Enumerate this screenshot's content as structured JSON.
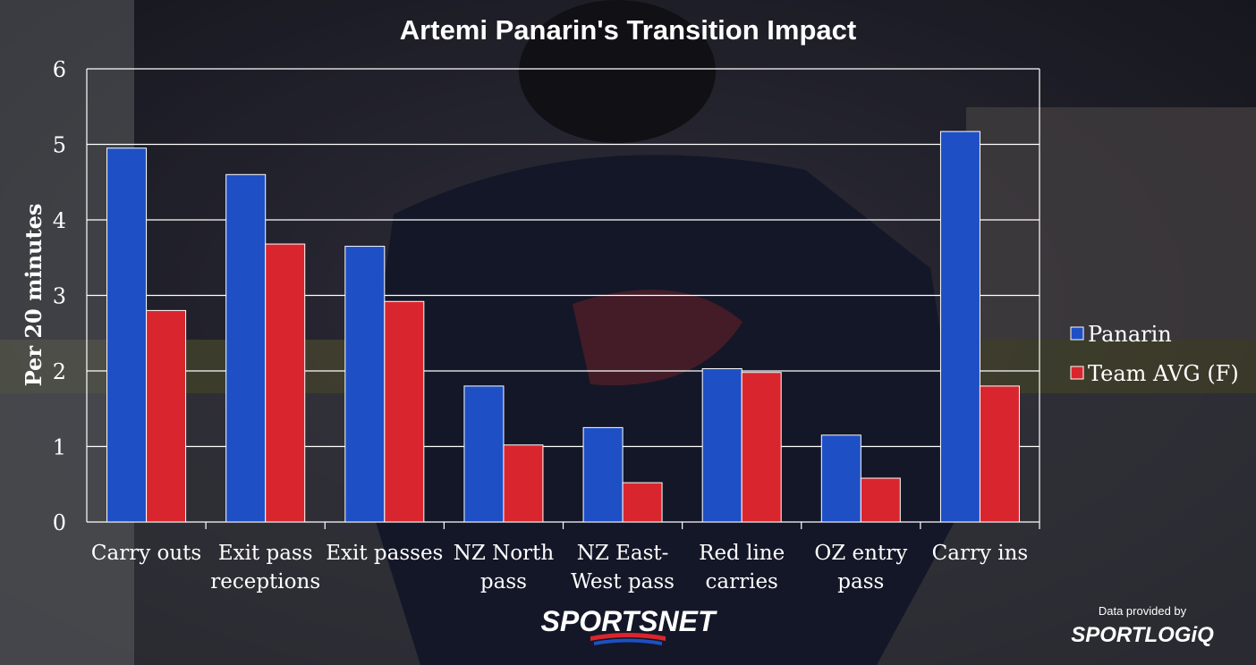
{
  "chart_data": {
    "type": "bar",
    "title": "Artemi Panarin's Transition Impact",
    "ylabel": "Per 20 minutes",
    "xlabel": "",
    "ylim": [
      0,
      6
    ],
    "yticks": [
      "0",
      "1",
      "2",
      "3",
      "4",
      "5",
      "6"
    ],
    "grid": true,
    "legend_position": "right",
    "categories": [
      [
        "Carry outs"
      ],
      [
        "Exit pass",
        "receptions"
      ],
      [
        "Exit passes"
      ],
      [
        "NZ North",
        "pass"
      ],
      [
        "NZ East-",
        "West pass"
      ],
      [
        "Red line",
        "carries"
      ],
      [
        "OZ entry",
        "pass"
      ],
      [
        "Carry ins"
      ]
    ],
    "series": [
      {
        "name": "Panarin",
        "color": "#1E4FC4",
        "values": [
          4.95,
          4.6,
          3.65,
          1.8,
          1.25,
          2.03,
          1.15,
          5.17
        ]
      },
      {
        "name": "Team AVG (F)",
        "color": "#D9262E",
        "values": [
          2.8,
          3.68,
          2.92,
          1.02,
          0.52,
          1.98,
          0.58,
          1.8
        ]
      }
    ]
  },
  "credits": {
    "publisher": "SPORTSNET",
    "data_provided_by": "Data provided by",
    "data_source": "SPORTLOGiQ"
  }
}
